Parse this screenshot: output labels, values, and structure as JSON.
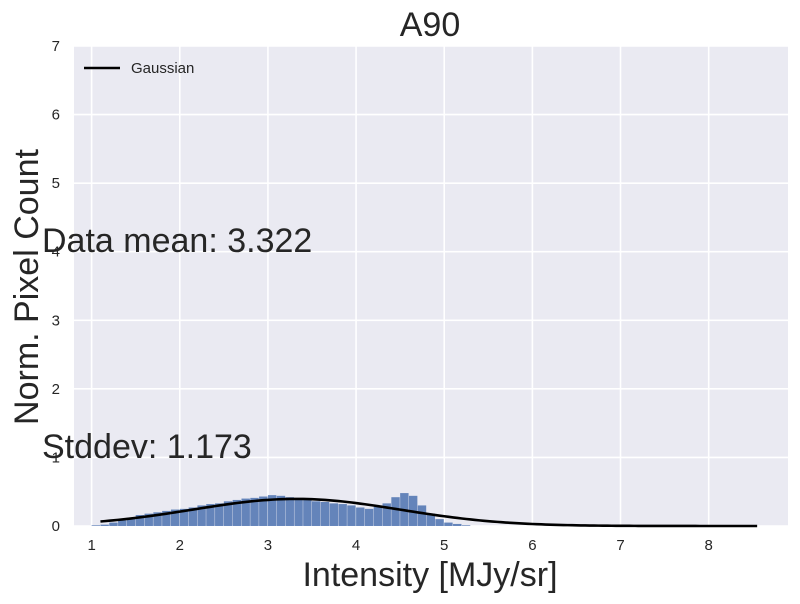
{
  "chart_data": {
    "type": "bar",
    "title": "A90",
    "xlabel": "Intensity [MJy/sr]",
    "ylabel": "Norm. Pixel Count",
    "xlim": [
      0.8,
      8.9
    ],
    "ylim": [
      0,
      7
    ],
    "xticks": [
      1,
      2,
      3,
      4,
      5,
      6,
      7,
      8
    ],
    "yticks": [
      0,
      1,
      2,
      3,
      4,
      5,
      6,
      7
    ],
    "grid": true,
    "background": "#eaeaf2",
    "legend": {
      "position": "top-left",
      "entries": [
        "Gaussian"
      ]
    },
    "annotations": [
      "Data mean: 3.322",
      "Stddev: 1.173"
    ],
    "series": [
      {
        "name": "histogram",
        "kind": "bar",
        "color": "#4c72b0",
        "x": [
          1.05,
          1.15,
          1.25,
          1.35,
          1.45,
          1.55,
          1.65,
          1.75,
          1.85,
          1.95,
          2.05,
          2.15,
          2.25,
          2.35,
          2.45,
          2.55,
          2.65,
          2.75,
          2.85,
          2.95,
          3.05,
          3.15,
          3.25,
          3.35,
          3.45,
          3.55,
          3.65,
          3.75,
          3.85,
          3.95,
          4.05,
          4.15,
          4.25,
          4.35,
          4.45,
          4.55,
          4.65,
          4.75,
          4.85,
          4.95,
          5.05,
          5.15,
          5.25
        ],
        "values": [
          0.01,
          0.02,
          0.05,
          0.08,
          0.12,
          0.16,
          0.18,
          0.2,
          0.22,
          0.24,
          0.25,
          0.27,
          0.3,
          0.32,
          0.33,
          0.36,
          0.38,
          0.4,
          0.41,
          0.43,
          0.45,
          0.44,
          0.42,
          0.4,
          0.38,
          0.36,
          0.35,
          0.33,
          0.32,
          0.3,
          0.27,
          0.25,
          0.28,
          0.33,
          0.42,
          0.48,
          0.44,
          0.3,
          0.18,
          0.1,
          0.05,
          0.03,
          0.01
        ]
      },
      {
        "name": "Gaussian",
        "kind": "line",
        "color": "#000000",
        "mean": 3.322,
        "stddev": 1.173,
        "x_range": [
          1.1,
          8.55
        ]
      }
    ]
  }
}
